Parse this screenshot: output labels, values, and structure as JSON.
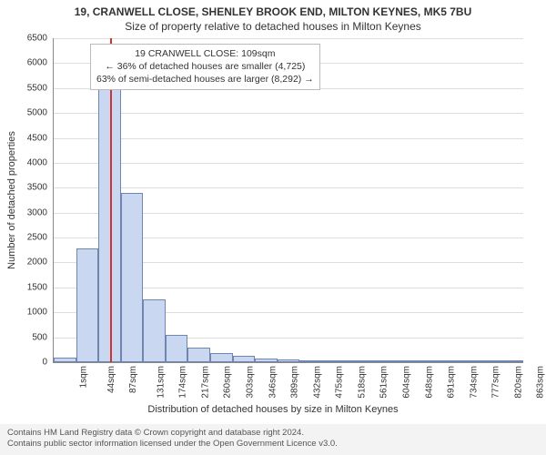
{
  "title_main": "19, CRANWELL CLOSE, SHENLEY BROOK END, MILTON KEYNES, MK5 7BU",
  "title_sub": "Size of property relative to detached houses in Milton Keynes",
  "y_axis": {
    "title": "Number of detached properties",
    "ticks": [
      0,
      500,
      1000,
      1500,
      2000,
      2500,
      3000,
      3500,
      4000,
      4500,
      5000,
      5500,
      6000,
      6500
    ],
    "max": 6500
  },
  "x_axis": {
    "title": "Distribution of detached houses by size in Milton Keynes",
    "labels": [
      "1sqm",
      "44sqm",
      "87sqm",
      "131sqm",
      "174sqm",
      "217sqm",
      "260sqm",
      "303sqm",
      "346sqm",
      "389sqm",
      "432sqm",
      "475sqm",
      "518sqm",
      "561sqm",
      "604sqm",
      "648sqm",
      "691sqm",
      "734sqm",
      "777sqm",
      "820sqm",
      "863sqm"
    ]
  },
  "histogram": {
    "type": "histogram",
    "bin_values": [
      90,
      2280,
      5650,
      3400,
      1260,
      550,
      300,
      180,
      120,
      80,
      55,
      45,
      20,
      15,
      10,
      5,
      5,
      3,
      2,
      2,
      2
    ],
    "bar_fill": "#c9d8f0",
    "bar_stroke": "#6f87b0",
    "bar_stroke_width": 1
  },
  "marker": {
    "property_label": "19 CRANWELL CLOSE: 109sqm",
    "smaller_text": "← 36% of detached houses are smaller (4,725)",
    "larger_text": "63% of semi-detached houses are larger (8,292) →",
    "x_value_sqm": 109,
    "line_color": "#cc3333"
  },
  "callout_box": {
    "border_color": "#bbbbbb",
    "bg": "#ffffff"
  },
  "grid_color": "#dddddd",
  "axis_color": "#888888",
  "background": "#ffffff",
  "footer": {
    "line1": "Contains HM Land Registry data © Crown copyright and database right 2024.",
    "line2": "Contains public sector information licensed under the Open Government Licence v3.0."
  },
  "fonts": {
    "title_size_pt": 12,
    "axis_label_size_pt": 11,
    "tick_size_pt": 10,
    "callout_size_pt": 10.5,
    "footer_size_pt": 9.5
  }
}
